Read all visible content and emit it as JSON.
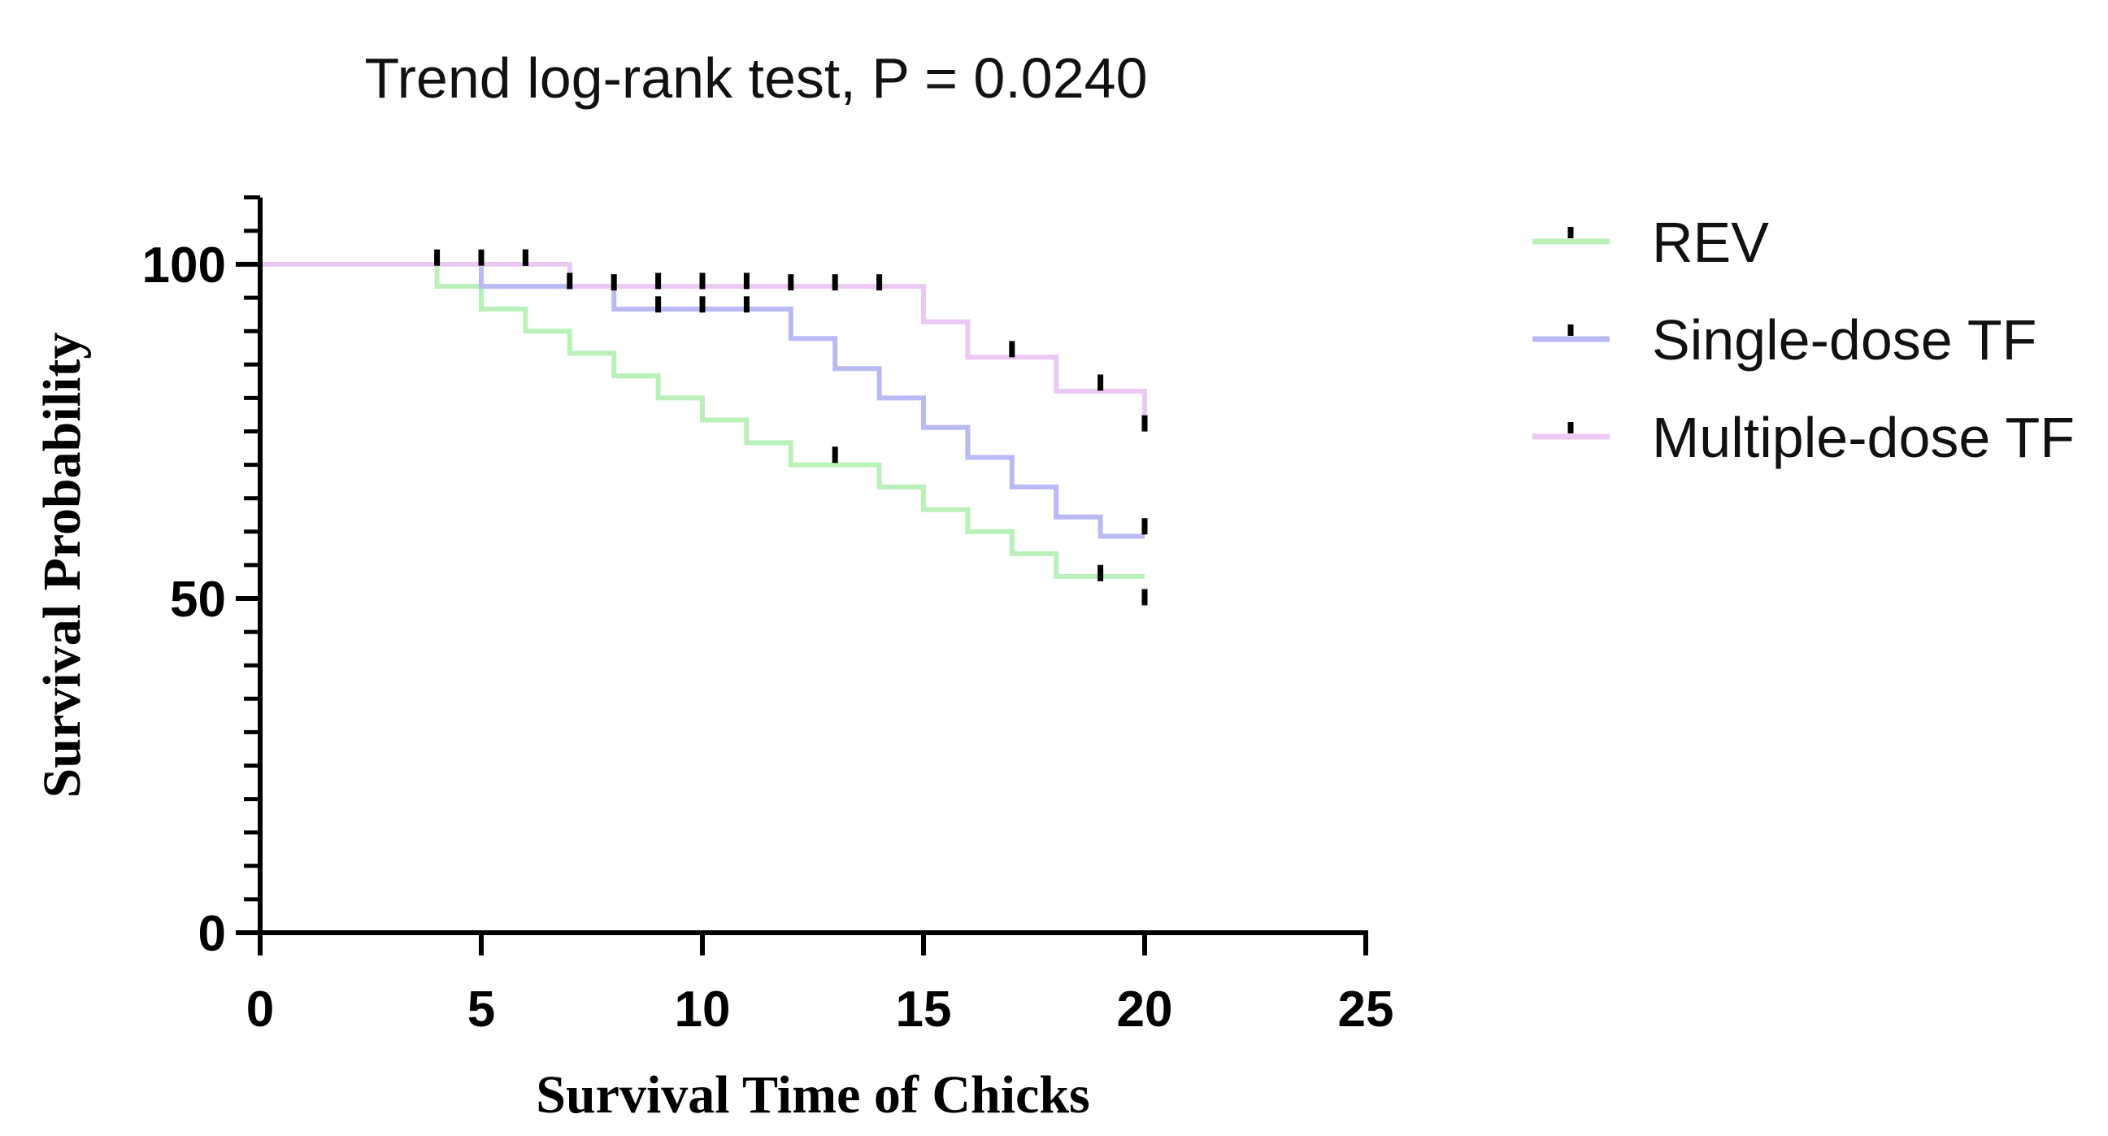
{
  "chart_data": {
    "type": "line",
    "subtype": "kaplan-meier-step",
    "title": "Trend log-rank test, P = 0.0240",
    "xlabel": "Survival Time of Chicks",
    "ylabel": "Survival Probability",
    "xlim": [
      0,
      25
    ],
    "ylim": [
      0,
      110
    ],
    "x_ticks": [
      0,
      5,
      10,
      15,
      20,
      25
    ],
    "x_tick_labels": [
      "0",
      "5",
      "10",
      "15",
      "20",
      "25"
    ],
    "y_major_ticks": [
      0,
      50,
      100
    ],
    "y_tick_labels": [
      "0",
      "50",
      "100"
    ],
    "y_minor_step": 5,
    "legend_position": "right",
    "series": [
      {
        "name": "REV",
        "color": "#b9f1b9",
        "steps": [
          [
            0,
            100
          ],
          [
            4,
            96.7
          ],
          [
            5,
            93.3
          ],
          [
            6,
            90
          ],
          [
            7,
            86.7
          ],
          [
            8,
            83.3
          ],
          [
            9,
            80
          ],
          [
            10,
            76.7
          ],
          [
            11,
            73.3
          ],
          [
            12,
            70
          ],
          [
            14,
            66.7
          ],
          [
            15,
            63.3
          ],
          [
            16,
            60
          ],
          [
            17,
            56.7
          ],
          [
            18,
            53.3
          ],
          [
            20,
            53.3
          ]
        ],
        "censor": [
          [
            13,
            71.5
          ],
          [
            19,
            53.8
          ],
          [
            20,
            50.2
          ]
        ]
      },
      {
        "name": "Single-dose TF",
        "color": "#b9b9f4",
        "steps": [
          [
            0,
            100
          ],
          [
            5,
            96.7
          ],
          [
            8,
            93.3
          ],
          [
            12,
            88.9
          ],
          [
            13,
            84.4
          ],
          [
            14,
            80
          ],
          [
            15,
            75.6
          ],
          [
            16,
            71.1
          ],
          [
            17,
            66.7
          ],
          [
            18,
            62.2
          ],
          [
            19,
            59.3
          ],
          [
            20,
            59.3
          ]
        ],
        "censor": [
          [
            4,
            101
          ],
          [
            5,
            101
          ],
          [
            6,
            101
          ],
          [
            7,
            97.5
          ],
          [
            9,
            97.5
          ],
          [
            10,
            97.5
          ],
          [
            11,
            97.5
          ],
          [
            9,
            94
          ],
          [
            10,
            94
          ],
          [
            11,
            94
          ],
          [
            20,
            60.8
          ]
        ]
      },
      {
        "name": "Multiple-dose TF",
        "color": "#ecc9f4",
        "steps": [
          [
            0,
            100
          ],
          [
            7,
            96.7
          ],
          [
            15,
            91.4
          ],
          [
            16,
            86.1
          ],
          [
            18,
            81
          ],
          [
            20,
            81
          ],
          [
            20,
            77.5
          ]
        ],
        "censor": [
          [
            6,
            101
          ],
          [
            8,
            97.3
          ],
          [
            12,
            97.3
          ],
          [
            13,
            97.3
          ],
          [
            14,
            97.3
          ],
          [
            17,
            87.3
          ],
          [
            19,
            82.3
          ],
          [
            20,
            76.2
          ]
        ]
      }
    ]
  }
}
